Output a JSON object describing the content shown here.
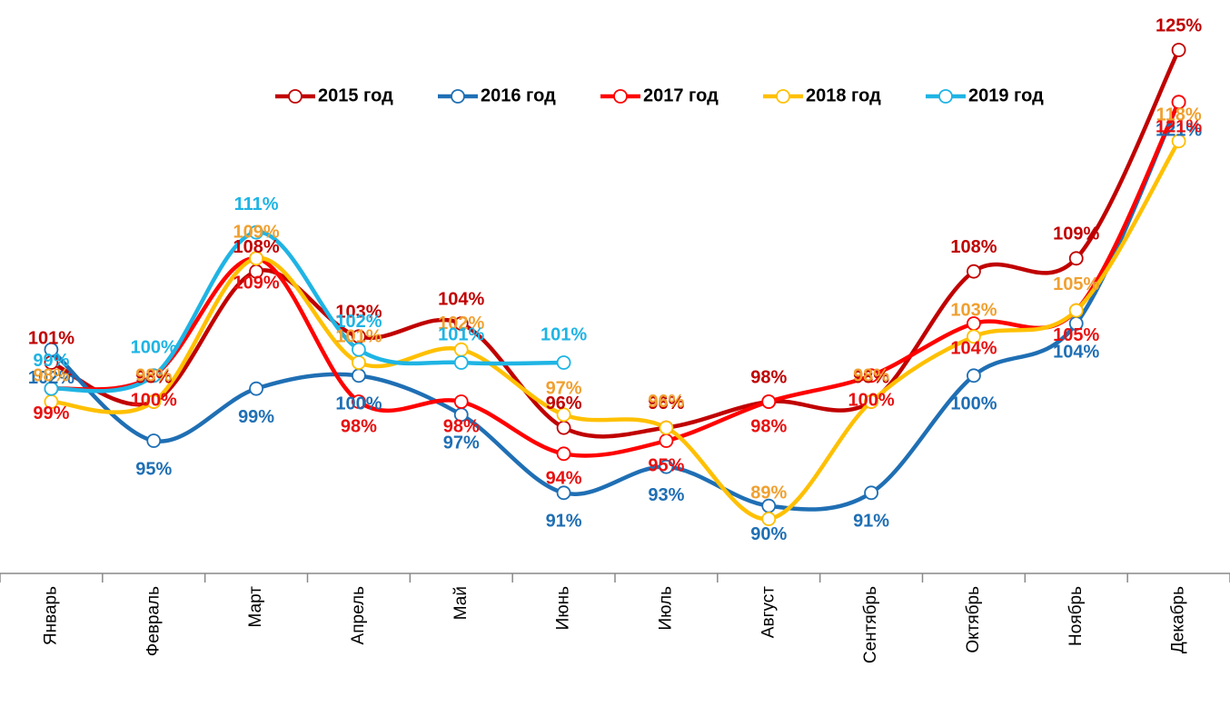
{
  "chart_data": {
    "type": "line",
    "categories": [
      "Январь",
      "Февраль",
      "Март",
      "Апрель",
      "Май",
      "Июнь",
      "Июль",
      "Август",
      "Сентябрь",
      "Октябрь",
      "Ноябрь",
      "Декабрь"
    ],
    "series": [
      {
        "name": "2015 год",
        "color": "#c00000",
        "label_color": "#c00000",
        "values": [
          101,
          98,
          108,
          103,
          104,
          96,
          96,
          98,
          98,
          108,
          109,
          125
        ],
        "value_labels": [
          "101%",
          "98%",
          "108%",
          "103%",
          "104%",
          "96%",
          "96%",
          "98%",
          "98%",
          "108%",
          "109%",
          "125%"
        ]
      },
      {
        "name": "2016 год",
        "color": "#1f6fb4",
        "label_color": "#1f6fb4",
        "values": [
          102,
          95,
          99,
          100,
          97,
          91,
          93,
          90,
          91,
          100,
          104,
          121
        ],
        "value_labels": [
          "102%",
          "95%",
          "99%",
          "100%",
          "97%",
          "91%",
          "93%",
          "90%",
          "91%",
          "100%",
          "104%",
          "121%"
        ]
      },
      {
        "name": "2017 год",
        "color": "#ff0000",
        "label_color": "#e81010",
        "values": [
          99,
          100,
          109,
          98,
          98,
          94,
          95,
          98,
          100,
          104,
          105,
          121
        ],
        "value_labels": [
          "99%",
          "100%",
          "109%",
          "98%",
          "98%",
          "94%",
          "95%",
          "98%",
          "100%",
          "104%",
          "105%",
          "121%"
        ]
      },
      {
        "name": "2018 год",
        "color": "#ffc000",
        "label_color": "#f0a030",
        "values": [
          98,
          98,
          109,
          101,
          102,
          97,
          96,
          89,
          98,
          103,
          105,
          118
        ],
        "value_labels": [
          "98%",
          "98%",
          "109%",
          "101%",
          "102%",
          "97%",
          "96%",
          "89%",
          "98%",
          "103%",
          "105%",
          "118%"
        ]
      },
      {
        "name": "2019 год",
        "color": "#1fb4e4",
        "label_color": "#1fb4e4",
        "values": [
          99,
          100,
          111,
          102,
          101,
          101,
          null,
          null,
          null,
          null,
          null,
          null
        ],
        "value_labels": [
          "99%",
          "100%",
          "111%",
          "102%",
          "101%",
          "101%",
          null,
          null,
          null,
          null,
          null,
          null
        ]
      }
    ]
  }
}
